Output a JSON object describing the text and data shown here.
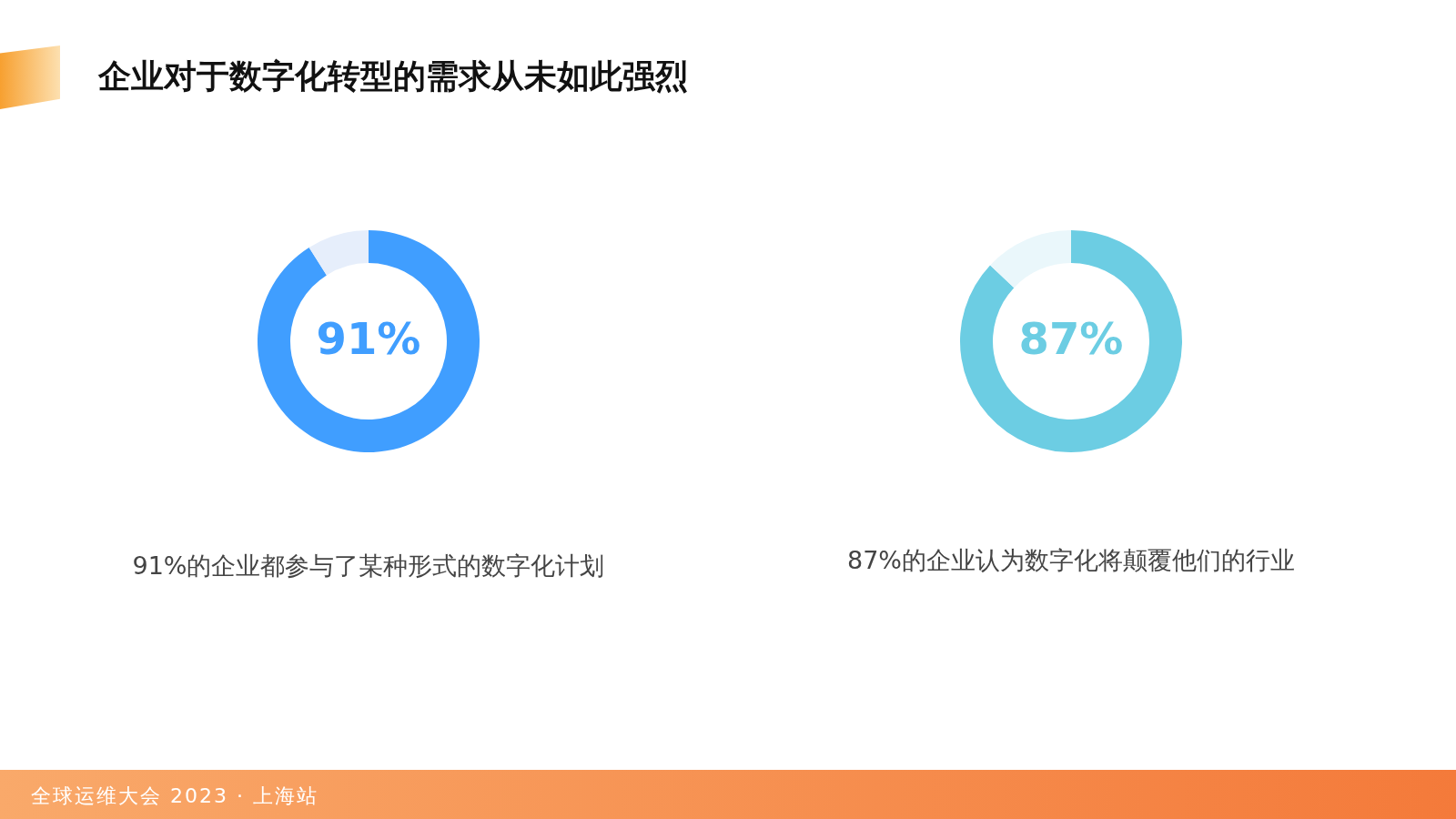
{
  "chart_data": [
    {
      "type": "donut",
      "title": "企业对于数字化转型的需求从未如此强烈",
      "categories": [
        null,
        null
      ],
      "values": [
        91,
        9
      ],
      "colors": [
        "#409eff",
        "#e6eefb"
      ],
      "value_labels": [
        "91%",
        null
      ],
      "annotations": [
        "91%的企业都参与了某种形式的数字化计划",
        "全球运维大会 2023 · 上海站"
      ]
    },
    {
      "type": "donut",
      "categories": [
        null,
        null
      ],
      "values": [
        87,
        13
      ],
      "colors": [
        "#6ccde3",
        "#eaf7fb"
      ],
      "value_labels": [
        "87%",
        null
      ],
      "annotations": [
        "87%的企业认为数字化将颠覆他们的行业"
      ]
    }
  ]
}
